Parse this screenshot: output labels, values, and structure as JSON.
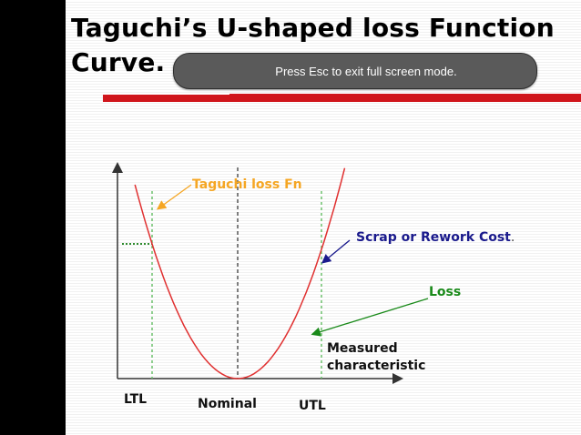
{
  "slide": {
    "title_line1": "Taguchi’s U-shaped  loss Function",
    "title_line2": "Curve."
  },
  "overlay": {
    "esc_message": "Press Esc to exit full screen mode."
  },
  "colors": {
    "curve": "#e03030",
    "accent_red": "#d0161c",
    "orange": "#f5a623",
    "navy": "#1a1a8c",
    "green": "#1a8a1a",
    "guide_green": "#6cc06c",
    "toast_bg": "#5a5a5a"
  },
  "chart_data": {
    "type": "line",
    "title": "",
    "xlabel": "Measured characteristic",
    "ylabel": "",
    "x_ticks": [
      "LTL",
      "Nominal",
      "UTL"
    ],
    "annotations": {
      "taguchi": "Taguchi loss Fn",
      "scrap": "Scrap or Rework Cost",
      "scrap_period": ".",
      "loss": "Loss",
      "measured_line1": "Measured",
      "measured_line2": "characteristic"
    },
    "series": [
      {
        "x": [
          -1.0,
          -0.5,
          0,
          0.5,
          1.0,
          1.25
        ],
        "y": [
          1.0,
          0.25,
          0,
          0.25,
          1.0,
          1.56
        ]
      }
    ]
  }
}
